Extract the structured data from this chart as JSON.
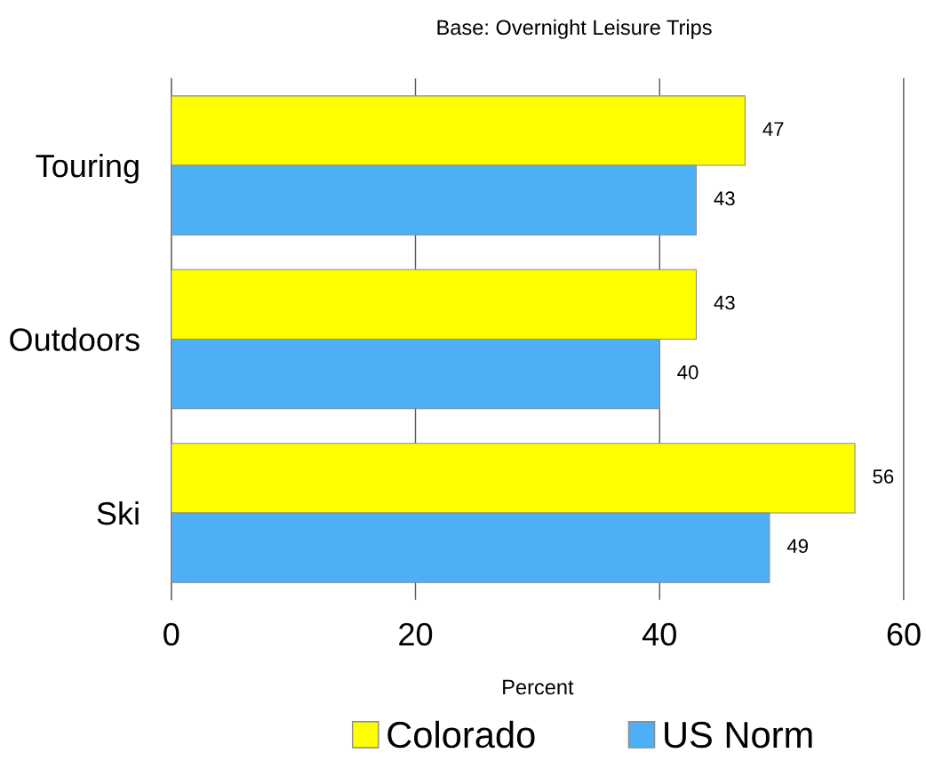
{
  "chart_data": {
    "type": "bar",
    "orientation": "horizontal",
    "title": "Base: Overnight Leisure Trips",
    "xlabel": "Percent",
    "categories": [
      "Touring",
      "Outdoors",
      "Ski"
    ],
    "series": [
      {
        "name": "Colorado",
        "color": "#ffff00",
        "values": [
          47,
          43,
          56
        ]
      },
      {
        "name": "US Norm",
        "color": "#4daff5",
        "values": [
          43,
          40,
          49
        ]
      }
    ],
    "xlim": [
      0,
      60
    ],
    "xticks": [
      0,
      20,
      40,
      60
    ],
    "grid": "x",
    "data_labels": true,
    "legend": "bottom"
  }
}
